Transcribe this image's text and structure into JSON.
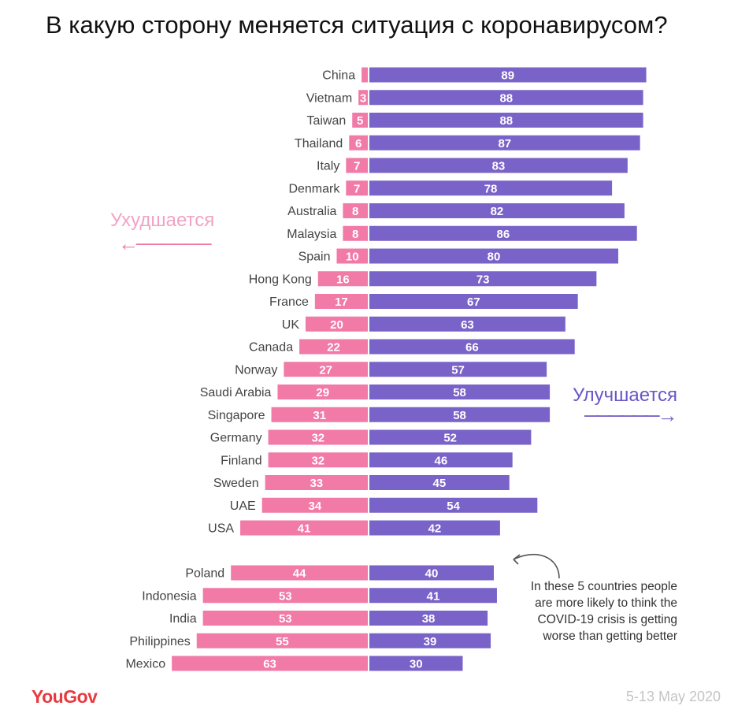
{
  "title": "В какую сторону меняется ситуация с коронавирусом?",
  "labels": {
    "worse": "Ухудшается",
    "better": "Улучшается",
    "note": "In these 5 countries people are more likely to think the COVID-19 crisis is getting worse than getting better"
  },
  "footer": {
    "logo": "YouGov",
    "date": "5-13 May 2020"
  },
  "colors": {
    "worse": "#f17aa7",
    "better": "#7a63c8",
    "worse_text": "#f2a3c3",
    "better_text": "#6a55c8"
  },
  "chart_data": {
    "type": "bar",
    "orientation": "horizontal-diverging",
    "categories": [
      "China",
      "Vietnam",
      "Taiwan",
      "Thailand",
      "Italy",
      "Denmark",
      "Australia",
      "Malaysia",
      "Spain",
      "Hong Kong",
      "France",
      "UK",
      "Canada",
      "Norway",
      "Saudi Arabia",
      "Singapore",
      "Germany",
      "Finland",
      "Sweden",
      "UAE",
      "USA",
      "Poland",
      "Indonesia",
      "India",
      "Philippines",
      "Mexico"
    ],
    "series": [
      {
        "name": "Ухудшается",
        "values": [
          2,
          3,
          5,
          6,
          7,
          7,
          8,
          8,
          10,
          16,
          17,
          20,
          22,
          27,
          29,
          31,
          32,
          32,
          33,
          34,
          41,
          44,
          53,
          53,
          55,
          63
        ],
        "labels": [
          "",
          "3",
          "5",
          "6",
          "7",
          "7",
          "8",
          "8",
          "10",
          "16",
          "17",
          "20",
          "22",
          "27",
          "29",
          "31",
          "32",
          "32",
          "33",
          "34",
          "41",
          "44",
          "53",
          "53",
          "55",
          "63"
        ]
      },
      {
        "name": "Улучшается",
        "values": [
          89,
          88,
          88,
          87,
          83,
          78,
          82,
          86,
          80,
          73,
          67,
          63,
          66,
          57,
          58,
          58,
          52,
          46,
          45,
          54,
          42,
          40,
          41,
          38,
          39,
          30
        ],
        "labels": [
          "89",
          "88",
          "88",
          "87",
          "83",
          "78",
          "82",
          "86",
          "80",
          "73",
          "67",
          "63",
          "66",
          "57",
          "58",
          "58",
          "52",
          "46",
          "45",
          "54",
          "42",
          "40",
          "41",
          "38",
          "39",
          "30"
        ]
      }
    ],
    "xlim": [
      0,
      100
    ],
    "grid": false,
    "legend": "none"
  }
}
